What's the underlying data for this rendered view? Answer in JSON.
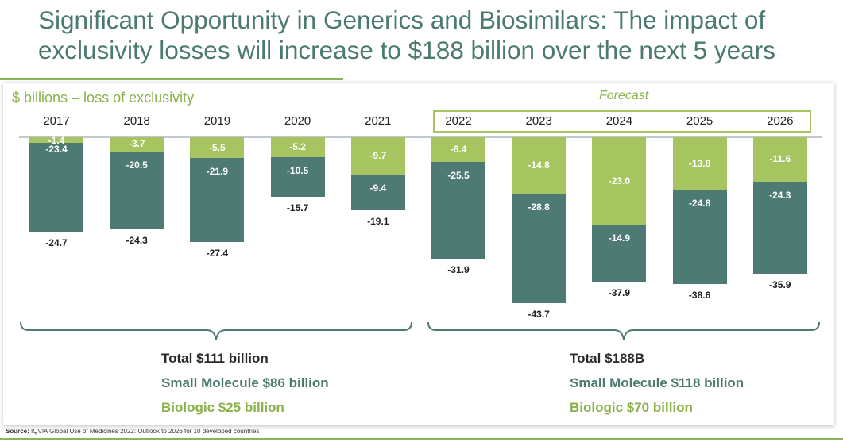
{
  "title": "Significant Opportunity in Generics and Biosimilars: The impact of exclusivity losses will increase to $188 billion over the next 5 years",
  "units_label": "$ billions – loss of exclusivity",
  "forecast_label": "Forecast",
  "colors": {
    "small_molecule": "#4d7b74",
    "biologic": "#a6c45f",
    "title": "#4a7a70",
    "accent": "#8ab24a"
  },
  "chart_data": {
    "type": "bar",
    "stacked": true,
    "direction": "downward (negative values)",
    "categories": [
      "2017",
      "2018",
      "2019",
      "2020",
      "2021",
      "2022",
      "2023",
      "2024",
      "2025",
      "2026"
    ],
    "forecast_categories": [
      "2022",
      "2023",
      "2024",
      "2025",
      "2026"
    ],
    "series": [
      {
        "key": "biologic",
        "values": [
          -1.4,
          -3.7,
          -5.5,
          -5.2,
          -9.7,
          -6.4,
          -14.8,
          -23.0,
          -13.8,
          -11.6
        ]
      },
      {
        "key": "small_molecule",
        "values": [
          -23.4,
          -20.5,
          -21.9,
          -10.5,
          -9.4,
          -25.5,
          -28.8,
          -14.9,
          -24.8,
          -24.3
        ]
      }
    ],
    "totals": [
      -24.7,
      -24.3,
      -27.4,
      -15.7,
      -19.1,
      -31.9,
      -43.7,
      -37.9,
      -38.6,
      -35.9
    ],
    "labels": {
      "biologic": [
        "-1.4",
        "-3.7",
        "-5.5",
        "-5.2",
        "-9.7",
        "-6.4",
        "-14.8",
        "-23.0",
        "-13.8",
        "-11.6"
      ],
      "small_molecule": [
        "-23.4",
        "-20.5",
        "-21.9",
        "-10.5",
        "-9.4",
        "-25.5",
        "-28.8",
        "-14.9",
        "-24.8",
        "-24.3"
      ],
      "totals": [
        "-24.7",
        "-24.3",
        "-27.4",
        "-15.7",
        "-19.1",
        "-31.9",
        "-43.7",
        "-37.9",
        "-38.6",
        "-35.9"
      ]
    },
    "ylim": [
      -45,
      0
    ],
    "grid": false,
    "legend": "none"
  },
  "summaries": [
    {
      "total": "Total $111 billion",
      "small_molecule": "Small Molecule $86 billion",
      "biologic": "Biologic $25 billion"
    },
    {
      "total": "Total $188B",
      "small_molecule": "Small Molecule $118 billion",
      "biologic": "Biologic $70 billion"
    }
  ],
  "source": {
    "label": "Source:",
    "text": "IQVIA Global Use of Medicines 2022: Outlook to 2026 for 10 developed countries"
  }
}
